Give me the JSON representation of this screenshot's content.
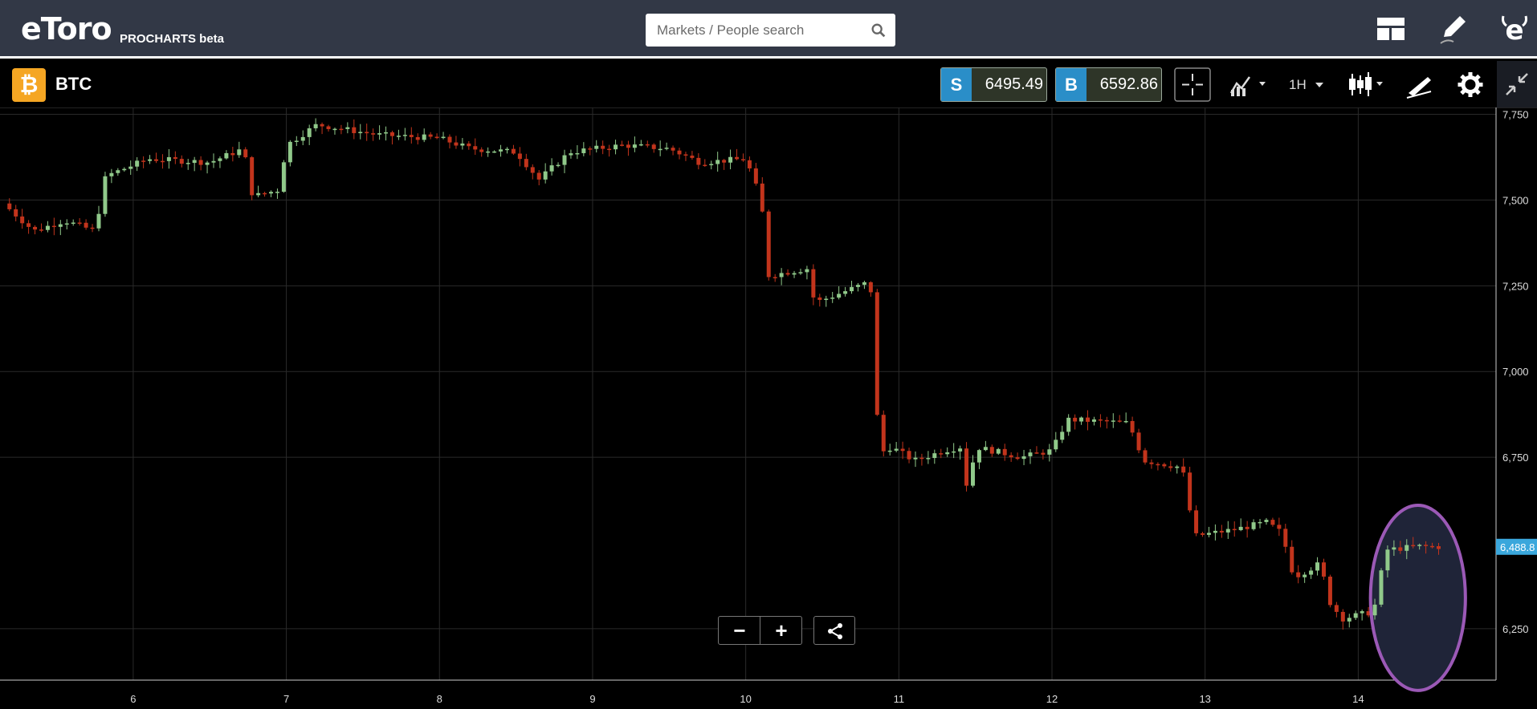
{
  "header": {
    "logo": "eToro",
    "subtitle": "PROCHARTS beta",
    "search_placeholder": "Markets / People search"
  },
  "instrument": {
    "badge": "₿",
    "symbol": "BTC",
    "sell_label": "S",
    "sell_price": "6495.49",
    "buy_label": "B",
    "buy_price": "6592.86",
    "timeframe": "1H"
  },
  "colors": {
    "up": "#90c98a",
    "down": "#c2341c",
    "grid": "#2a2a2a",
    "price_tag": "#3aa7dc",
    "highlight": "#9b59b6"
  },
  "icons": [
    "search-icon",
    "layout-icon",
    "pencil-icon",
    "user-etoro-icon",
    "crosshair-icon",
    "compare-icon",
    "candles-icon",
    "draw-tools-icon",
    "gear-icon",
    "collapse-icon",
    "share-icon"
  ],
  "chart_data": {
    "type": "candlestick",
    "y_axis_ticks": [
      "7,750",
      "7,500",
      "7,250",
      "7,000",
      "6,750",
      "6,250"
    ],
    "y_axis_values": [
      7750,
      7500,
      7250,
      7000,
      6750,
      6250
    ],
    "x_axis_ticks": [
      "6",
      "7",
      "8",
      "9",
      "10",
      "11",
      "12",
      "13",
      "14"
    ],
    "x_axis_days": [
      6,
      7,
      8,
      9,
      10,
      11,
      12,
      13,
      14
    ],
    "ylim": [
      6100,
      7770
    ],
    "xlim": [
      5.13,
      14.9
    ],
    "last_price_label": "6,488.8",
    "last_price": 6488.8,
    "keypoints": [
      [
        5.15,
        7490
      ],
      [
        5.35,
        7410
      ],
      [
        5.55,
        7440
      ],
      [
        5.75,
        7410
      ],
      [
        5.82,
        7570
      ],
      [
        6.1,
        7620
      ],
      [
        6.5,
        7610
      ],
      [
        6.72,
        7650
      ],
      [
        6.78,
        7510
      ],
      [
        6.95,
        7530
      ],
      [
        7.0,
        7660
      ],
      [
        7.2,
        7720
      ],
      [
        7.6,
        7690
      ],
      [
        8.0,
        7680
      ],
      [
        8.2,
        7650
      ],
      [
        8.5,
        7640
      ],
      [
        8.65,
        7560
      ],
      [
        8.85,
        7640
      ],
      [
        9.2,
        7660
      ],
      [
        9.5,
        7650
      ],
      [
        9.7,
        7610
      ],
      [
        10.0,
        7620
      ],
      [
        10.1,
        7500
      ],
      [
        10.15,
        7280
      ],
      [
        10.4,
        7300
      ],
      [
        10.45,
        7200
      ],
      [
        10.8,
        7260
      ],
      [
        10.82,
        7230
      ],
      [
        10.87,
        6760
      ],
      [
        10.95,
        6780
      ],
      [
        11.1,
        6740
      ],
      [
        11.3,
        6770
      ],
      [
        11.4,
        6780
      ],
      [
        11.45,
        6650
      ],
      [
        11.5,
        6780
      ],
      [
        11.8,
        6750
      ],
      [
        12.0,
        6770
      ],
      [
        12.1,
        6860
      ],
      [
        12.5,
        6850
      ],
      [
        12.6,
        6740
      ],
      [
        12.85,
        6720
      ],
      [
        12.93,
        6520
      ],
      [
        13.2,
        6540
      ],
      [
        13.4,
        6560
      ],
      [
        13.5,
        6530
      ],
      [
        13.58,
        6400
      ],
      [
        13.75,
        6440
      ],
      [
        13.82,
        6320
      ],
      [
        13.9,
        6280
      ],
      [
        14.1,
        6300
      ],
      [
        14.18,
        6480
      ],
      [
        14.4,
        6490
      ],
      [
        14.55,
        6488.8
      ]
    ],
    "highlight_region": {
      "x_from": 14.08,
      "x_to": 14.7,
      "y_from": 6070,
      "y_to": 6610
    }
  }
}
